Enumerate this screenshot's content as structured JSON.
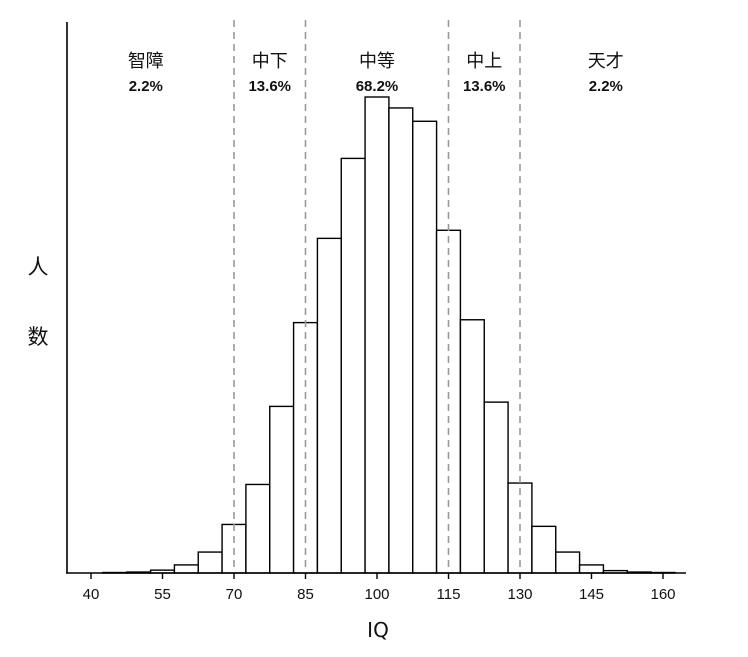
{
  "chart_data": {
    "type": "bar",
    "title": "",
    "xlabel": "IQ",
    "ylabel": "人数",
    "xlim": [
      33.5,
      166
    ],
    "ylim": [
      0,
      100
    ],
    "x_ticks": [
      40,
      55,
      70,
      85,
      100,
      115,
      130,
      145,
      160
    ],
    "bin_width": 5,
    "bins": [
      {
        "x": 45,
        "value": 0.1
      },
      {
        "x": 50,
        "value": 0.2
      },
      {
        "x": 55,
        "value": 0.6
      },
      {
        "x": 60,
        "value": 1.7
      },
      {
        "x": 65,
        "value": 4.4
      },
      {
        "x": 70,
        "value": 10.2
      },
      {
        "x": 75,
        "value": 18.6
      },
      {
        "x": 80,
        "value": 35.0
      },
      {
        "x": 85,
        "value": 52.6
      },
      {
        "x": 90,
        "value": 70.3
      },
      {
        "x": 95,
        "value": 87.1
      },
      {
        "x": 100,
        "value": 100.0
      },
      {
        "x": 105,
        "value": 97.7
      },
      {
        "x": 110,
        "value": 94.9
      },
      {
        "x": 115,
        "value": 72.0
      },
      {
        "x": 120,
        "value": 53.2
      },
      {
        "x": 125,
        "value": 35.9
      },
      {
        "x": 130,
        "value": 18.9
      },
      {
        "x": 135,
        "value": 9.8
      },
      {
        "x": 140,
        "value": 4.4
      },
      {
        "x": 145,
        "value": 1.7
      },
      {
        "x": 150,
        "value": 0.5
      },
      {
        "x": 155,
        "value": 0.2
      },
      {
        "x": 160,
        "value": 0.1
      }
    ],
    "dividers": [
      70,
      85,
      115,
      130
    ],
    "regions": [
      {
        "name": "智障",
        "percent": "2.2%",
        "center": 51.5
      },
      {
        "name": "中下",
        "percent": "13.6%",
        "center": 77.5
      },
      {
        "name": "中等",
        "percent": "68.2%",
        "center": 100
      },
      {
        "name": "中上",
        "percent": "13.6%",
        "center": 122.5
      },
      {
        "name": "天才",
        "percent": "2.2%",
        "center": 148
      }
    ],
    "grid": false,
    "legend": "none"
  },
  "colors": {
    "bar_fill": "#ffffff",
    "bar_stroke": "#000000",
    "divider": "#9a9a9a",
    "background": "#ffffff"
  }
}
